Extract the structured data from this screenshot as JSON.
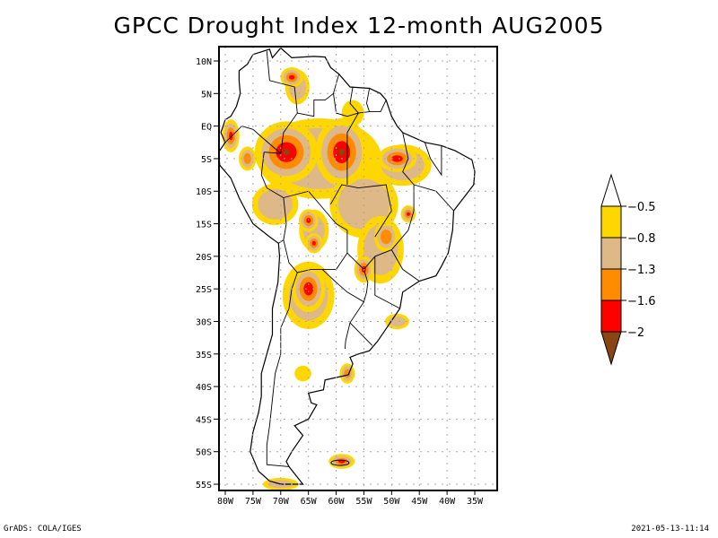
{
  "title": "GPCC Drought Index 12-month AUG2005",
  "footer": {
    "left": "GrADS: COLA/IGES",
    "right": "2021-05-13-11:14"
  },
  "map": {
    "region": "South America",
    "lon_range": [
      -82,
      -32
    ],
    "lat_range": [
      -56,
      12
    ],
    "lat_ticks": [
      {
        "lat": 10,
        "label": "10N"
      },
      {
        "lat": 5,
        "label": "5N"
      },
      {
        "lat": 0,
        "label": "EQ"
      },
      {
        "lat": -5,
        "label": "5S"
      },
      {
        "lat": -10,
        "label": "10S"
      },
      {
        "lat": -15,
        "label": "15S"
      },
      {
        "lat": -20,
        "label": "20S"
      },
      {
        "lat": -25,
        "label": "25S"
      },
      {
        "lat": -30,
        "label": "30S"
      },
      {
        "lat": -35,
        "label": "35S"
      },
      {
        "lat": -40,
        "label": "40S"
      },
      {
        "lat": -45,
        "label": "45S"
      },
      {
        "lat": -50,
        "label": "50S"
      },
      {
        "lat": -55,
        "label": "55S"
      }
    ],
    "lon_ticks": [
      {
        "lon": -80,
        "label": "80W"
      },
      {
        "lon": -75,
        "label": "75W"
      },
      {
        "lon": -70,
        "label": "70W"
      },
      {
        "lon": -65,
        "label": "65W"
      },
      {
        "lon": -60,
        "label": "60W"
      },
      {
        "lon": -55,
        "label": "55W"
      },
      {
        "lon": -50,
        "label": "50W"
      },
      {
        "lon": -45,
        "label": "45W"
      },
      {
        "lon": -40,
        "label": "40W"
      },
      {
        "lon": -35,
        "label": "35W"
      }
    ],
    "grid": "dotted"
  },
  "colorbar": {
    "levels": [
      {
        "label": "-0.5",
        "color": "#ffd700"
      },
      {
        "label": "-0.8",
        "color": "#deb887"
      },
      {
        "label": "-1.3",
        "color": "#ff8c00"
      },
      {
        "label": "-1.6",
        "color": "#ff0000"
      },
      {
        "label": "-2",
        "color": "#8b4513"
      }
    ],
    "top_cap_color": "#ffffff",
    "bottom_cap_color": "#8b4513",
    "bands": [
      "#ffd700",
      "#deb887",
      "#ff8c00",
      "#ff0000"
    ]
  },
  "drought_regions": [
    {
      "name": "western-amazon",
      "lon": -69,
      "lat": -4,
      "rx": 5,
      "ry": 4,
      "level": 4
    },
    {
      "name": "central-amazon",
      "lon": -59,
      "lat": -4,
      "rx": 4,
      "ry": 4.5,
      "level": 4
    },
    {
      "name": "northeast-para",
      "lon": -49,
      "lat": -5,
      "rx": 3,
      "ry": 1.5,
      "level": 3
    },
    {
      "name": "peru-north",
      "lon": -76,
      "lat": -5,
      "rx": 1.2,
      "ry": 1.5,
      "level": 2
    },
    {
      "name": "ecuador",
      "lon": -79,
      "lat": -1.5,
      "rx": 1,
      "ry": 2,
      "level": 3
    },
    {
      "name": "venezuela",
      "lon": -68,
      "lat": 7.5,
      "rx": 1.5,
      "ry": 1,
      "level": 3
    },
    {
      "name": "bolivia-north",
      "lon": -65,
      "lat": -14.5,
      "rx": 1.2,
      "ry": 1.2,
      "level": 3
    },
    {
      "name": "bolivia-south",
      "lon": -64,
      "lat": -18,
      "rx": 1,
      "ry": 1,
      "level": 3
    },
    {
      "name": "paraguay-argentina",
      "lon": -65,
      "lat": -25,
      "rx": 2.5,
      "ry": 3,
      "level": 3
    },
    {
      "name": "mato-grosso-sul",
      "lon": -55,
      "lat": -22,
      "rx": 1.2,
      "ry": 1.5,
      "level": 3
    },
    {
      "name": "minas-gerais",
      "lon": -47,
      "lat": -13.5,
      "rx": 0.8,
      "ry": 0.8,
      "level": 3
    },
    {
      "name": "goias",
      "lon": -51,
      "lat": -17,
      "rx": 1.8,
      "ry": 2,
      "level": 2
    },
    {
      "name": "falklands",
      "lon": -59,
      "lat": -51.5,
      "rx": 1.8,
      "ry": 0.6,
      "level": 3
    },
    {
      "name": "buenos-aires",
      "lon": -58,
      "lat": -38,
      "rx": 1,
      "ry": 1.2,
      "level": 2
    }
  ]
}
